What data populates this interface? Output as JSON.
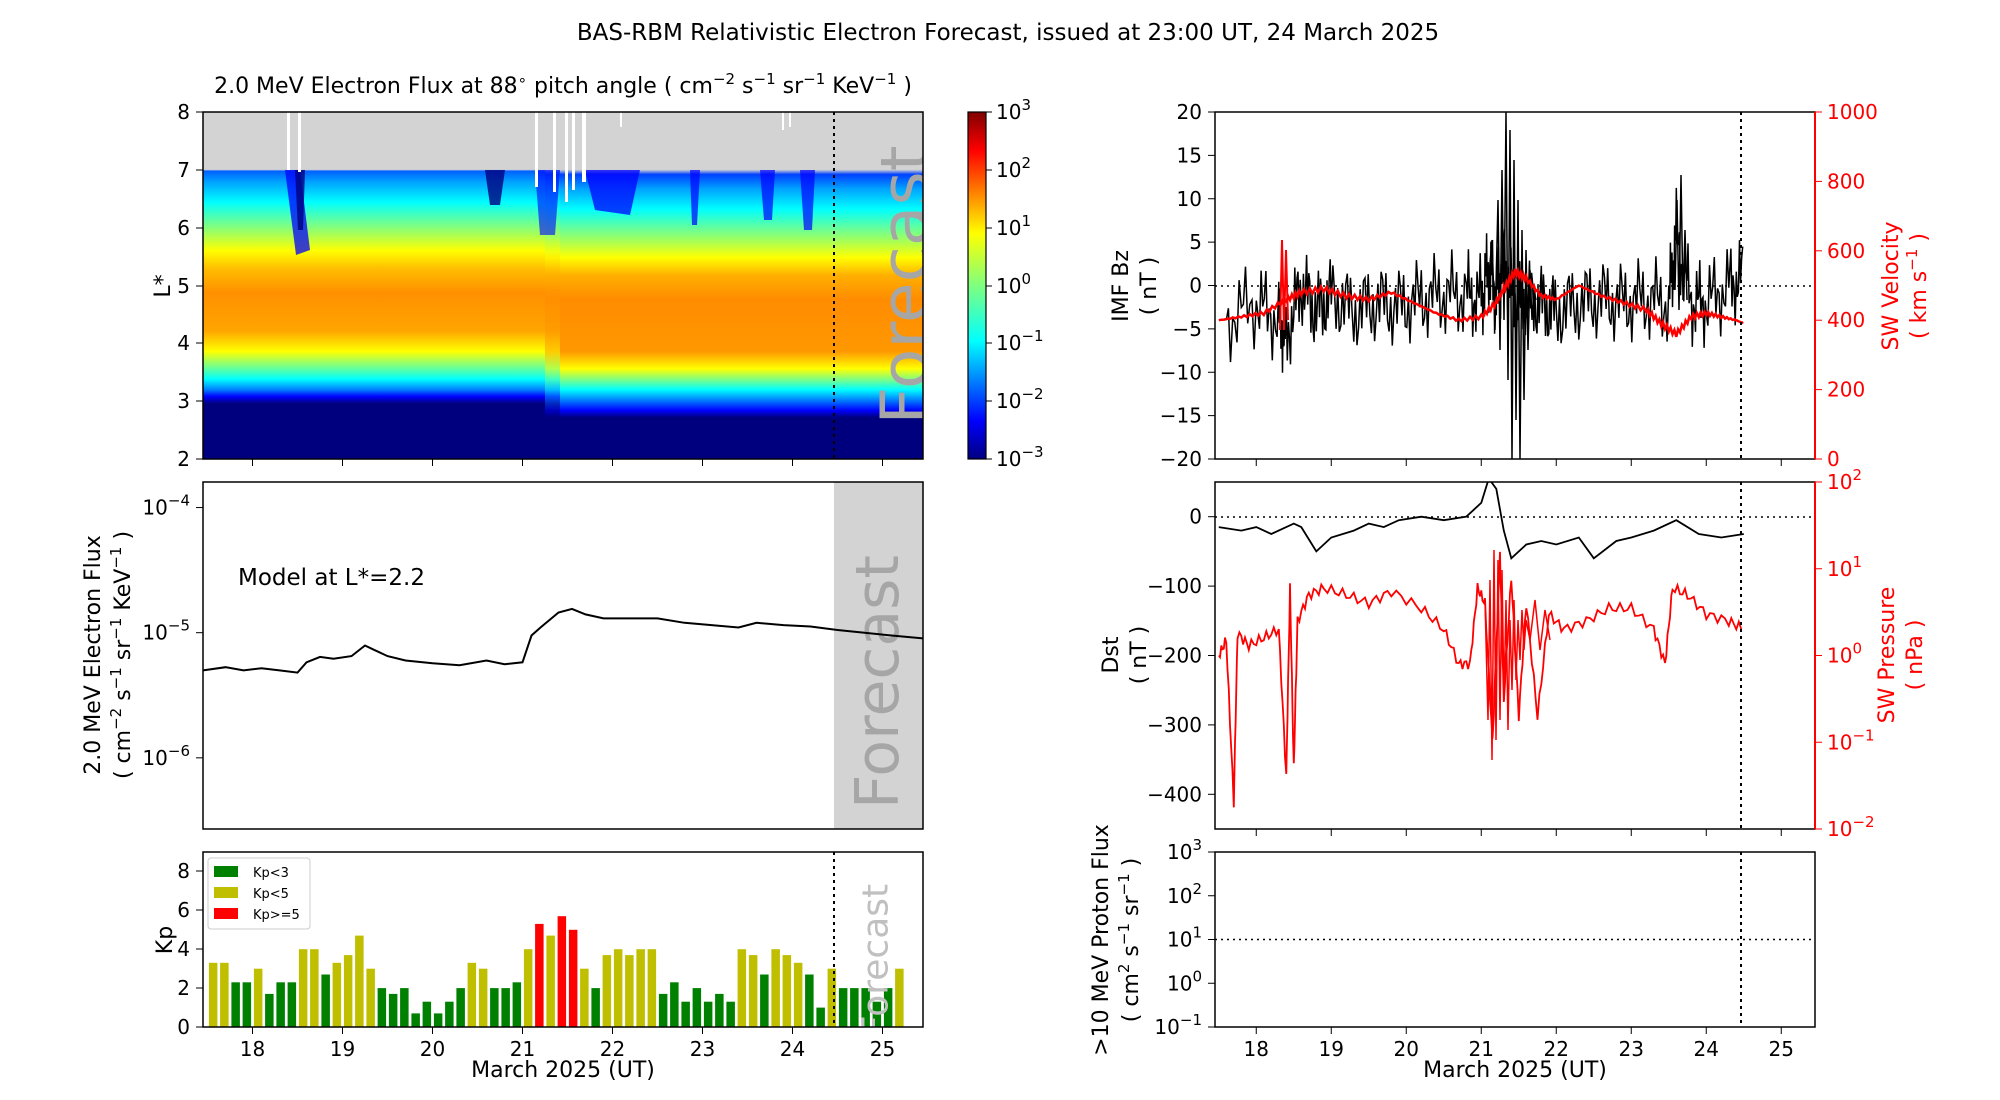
{
  "figure_title": "BAS-RBM Relativistic Electron Forecast, issued at 23:00 UT, 24 March 2025",
  "forecast_label": "Forecast",
  "x_axis": {
    "label": "March 2025 (UT)",
    "range": [
      17.45,
      25.45
    ],
    "ticks": [
      "18",
      "19",
      "20",
      "21",
      "22",
      "23",
      "24",
      "25"
    ],
    "forecast_start": 24.5
  },
  "colors": {
    "black": "#000000",
    "red": "#ff0000",
    "kp_green": "#008000",
    "kp_yellow": "#bfbf00",
    "kp_red": "#ff0000",
    "forecast_gray": "#d3d3d3"
  },
  "chart_data": [
    {
      "id": "flux_map",
      "type": "heatmap",
      "title_parts": [
        "2.0 MeV Electron Flux at 88",
        "∘",
        " pitch angle ( cm",
        "−2",
        " s",
        "−1",
        " sr",
        "−1",
        " KeV",
        "−1",
        " )"
      ],
      "ylabel": "L*",
      "ylim": [
        2,
        8
      ],
      "yticks": [
        "2",
        "3",
        "4",
        "5",
        "6",
        "7",
        "8"
      ],
      "colorbar": {
        "scale": "log",
        "range": [
          0.001,
          1000
        ],
        "tick_bases": [
          "10",
          "10",
          "10",
          "10",
          "10",
          "10",
          "10"
        ],
        "tick_exps": [
          "3",
          "2",
          "1",
          "0",
          "−1",
          "−2",
          "−3"
        ]
      },
      "peak_band_L": [
        3.6,
        5.2
      ],
      "low_band_L": [
        2.0,
        3.0
      ],
      "no_data_above_L": 7.0
    },
    {
      "id": "flux_line",
      "type": "line",
      "ylabel_line1": "2.0 MeV Electron Flux",
      "ylabel_line2_parts": [
        "( cm",
        "−2",
        " s",
        "−1",
        " sr",
        "−1",
        " KeV",
        "−1",
        " )"
      ],
      "yscale": "log",
      "ylim": [
        2.7e-07,
        0.00016
      ],
      "ytick_exps": [
        "−4",
        "−5",
        "−6"
      ],
      "annotation": "Model at L*=2.2",
      "x": [
        17.45,
        17.7,
        17.9,
        18.1,
        18.3,
        18.5,
        18.6,
        18.75,
        18.9,
        19.1,
        19.25,
        19.35,
        19.5,
        19.7,
        20.0,
        20.3,
        20.6,
        20.8,
        21.0,
        21.1,
        21.2,
        21.4,
        21.55,
        21.7,
        21.9,
        22.2,
        22.5,
        22.8,
        23.1,
        23.4,
        23.6,
        23.9,
        24.2,
        24.5,
        24.8,
        25.1,
        25.45
      ],
      "y": [
        5e-06,
        5.3e-06,
        5e-06,
        5.2e-06,
        5e-06,
        4.8e-06,
        5.8e-06,
        6.4e-06,
        6.2e-06,
        6.5e-06,
        7.9e-06,
        7.3e-06,
        6.5e-06,
        6e-06,
        5.7e-06,
        5.5e-06,
        6e-06,
        5.6e-06,
        5.8e-06,
        9.5e-06,
        1.1e-05,
        1.45e-05,
        1.55e-05,
        1.4e-05,
        1.3e-05,
        1.3e-05,
        1.3e-05,
        1.2e-05,
        1.15e-05,
        1.1e-05,
        1.2e-05,
        1.15e-05,
        1.12e-05,
        1.05e-05,
        1e-05,
        9.5e-06,
        9e-06
      ]
    },
    {
      "id": "kp",
      "type": "bar",
      "ylabel": "Kp",
      "ylim": [
        0,
        9
      ],
      "yticks": [
        "0",
        "2",
        "4",
        "6",
        "8"
      ],
      "legend": [
        "Kp<3",
        "Kp<5",
        "Kp>=5"
      ],
      "bar_width_days": 0.1,
      "values": [
        3.3,
        3.3,
        2.3,
        2.3,
        3.0,
        1.7,
        2.3,
        2.3,
        4.0,
        4.0,
        2.7,
        3.3,
        3.7,
        4.7,
        3.0,
        2.0,
        1.7,
        2.0,
        0.7,
        1.3,
        0.7,
        1.3,
        2.0,
        3.3,
        3.0,
        2.0,
        2.0,
        2.3,
        4.0,
        5.3,
        4.7,
        5.7,
        5.0,
        3.0,
        2.0,
        3.7,
        4.0,
        3.7,
        4.0,
        4.0,
        1.7,
        2.3,
        1.3,
        2.0,
        1.3,
        1.7,
        1.3,
        4.0,
        3.7,
        2.7,
        4.0,
        3.7,
        3.3,
        2.7,
        1.0,
        3.0,
        2.0,
        2.0,
        2.0,
        1.3,
        2.0,
        3.0
      ]
    },
    {
      "id": "imf_sw",
      "type": "line",
      "ylabel_line1": "IMF Bz",
      "ylabel_line2": "( nT )",
      "ylim": [
        -20,
        20
      ],
      "yticks": [
        "20",
        "15",
        "10",
        "5",
        "0",
        "−5",
        "−10",
        "−15",
        "−20"
      ],
      "ylabel_right_line1": "SW Velocity",
      "ylabel_right_line2_parts": [
        "( km s",
        "−1",
        " )"
      ],
      "ylim_right": [
        0,
        1000
      ],
      "yticks_right": [
        "1000",
        "800",
        "600",
        "400",
        "200",
        "0"
      ],
      "bz_x": [
        17.6,
        18.0,
        18.3,
        18.4,
        18.6,
        18.8,
        19.0,
        19.3,
        19.6,
        19.9,
        20.2,
        20.5,
        20.8,
        21.0,
        21.1,
        21.2,
        21.3,
        21.45,
        21.6,
        21.8,
        22.0,
        22.3,
        22.6,
        22.9,
        23.2,
        23.5,
        23.6,
        23.8,
        24.0,
        24.3,
        24.5
      ],
      "bz_y": [
        -4.0,
        -2.0,
        -4.0,
        -6.0,
        0.0,
        -3.0,
        -1.0,
        -3.0,
        -2.0,
        -2.5,
        -1.5,
        -1.0,
        -1.0,
        -1.5,
        2.0,
        -1.0,
        3.0,
        -2.0,
        -1.5,
        -2.0,
        -3.0,
        -2.0,
        -1.5,
        -2.0,
        -1.5,
        -2.0,
        6.0,
        -2.0,
        -2.0,
        0.0,
        1.0
      ],
      "v_x": [
        17.5,
        17.8,
        18.1,
        18.4,
        18.6,
        18.9,
        19.2,
        19.5,
        19.8,
        20.1,
        20.4,
        20.7,
        21.0,
        21.2,
        21.3,
        21.45,
        21.6,
        21.8,
        22.0,
        22.3,
        22.6,
        22.9,
        23.2,
        23.4,
        23.6,
        23.8,
        24.0,
        24.2,
        24.4,
        24.5
      ],
      "v_y": [
        400,
        410,
        420,
        460,
        480,
        490,
        470,
        460,
        480,
        450,
        420,
        400,
        410,
        450,
        490,
        540,
        520,
        470,
        460,
        500,
        470,
        450,
        430,
        390,
        360,
        410,
        420,
        410,
        400,
        390
      ]
    },
    {
      "id": "dst_pressure",
      "type": "line",
      "ylabel_line1": "Dst",
      "ylabel_line2": "( nT )",
      "ylim": [
        -450,
        50
      ],
      "yticks": [
        "0",
        "−100",
        "−200",
        "−300",
        "−400"
      ],
      "ylabel_right_line1": "SW Pressure",
      "ylabel_right_line2": "( nPa )",
      "yscale_right": "log",
      "ylim_right": [
        0.01,
        100
      ],
      "ytick_exps_right": [
        "2",
        "1",
        "0",
        "−1",
        "−2"
      ],
      "dst_x": [
        17.5,
        17.8,
        18.0,
        18.2,
        18.5,
        18.6,
        18.8,
        19.0,
        19.3,
        19.5,
        19.7,
        19.9,
        20.2,
        20.5,
        20.8,
        21.0,
        21.1,
        21.2,
        21.3,
        21.4,
        21.6,
        21.8,
        22.0,
        22.3,
        22.5,
        22.8,
        23.0,
        23.3,
        23.6,
        23.9,
        24.2,
        24.5
      ],
      "dst_y": [
        -15,
        -20,
        -15,
        -25,
        -10,
        -15,
        -50,
        -30,
        -20,
        -10,
        -15,
        -5,
        0,
        -5,
        0,
        20,
        55,
        40,
        -20,
        -60,
        -40,
        -35,
        -40,
        -30,
        -60,
        -35,
        -30,
        -20,
        -5,
        -25,
        -30,
        -25
      ],
      "p_x": [
        17.5,
        17.6,
        17.7,
        17.75,
        17.9,
        18.1,
        18.3,
        18.4,
        18.45,
        18.5,
        18.55,
        18.7,
        18.9,
        19.2,
        19.5,
        19.8,
        20.2,
        20.5,
        20.7,
        20.85,
        20.95,
        21.05,
        21.15,
        21.25,
        21.3,
        21.4,
        21.5,
        21.6,
        21.75,
        21.9,
        22.1,
        22.4,
        22.7,
        23.0,
        23.3,
        23.45,
        23.55,
        23.75,
        24.0,
        24.3,
        24.5
      ],
      "p_y": [
        1.0,
        1.5,
        0.02,
        1.8,
        1.3,
        1.6,
        2.0,
        0.04,
        6.0,
        0.05,
        2.5,
        5.0,
        6.0,
        5.0,
        4.0,
        5.5,
        3.5,
        2.0,
        0.8,
        0.8,
        6.0,
        4.0,
        0.1,
        15.0,
        0.3,
        8.0,
        0.2,
        4.0,
        0.2,
        3.0,
        2.0,
        2.5,
        3.5,
        3.5,
        2.0,
        0.8,
        6.0,
        5.0,
        3.0,
        2.5,
        2.0
      ]
    },
    {
      "id": "proton_flux",
      "type": "line",
      "ylabel_line1": ">10 MeV Proton Flux",
      "ylabel_line2_parts": [
        "( cm",
        "2",
        " s",
        "−1",
        " sr",
        "−1",
        " )"
      ],
      "yscale": "log",
      "ylim": [
        0.1,
        1000
      ],
      "ytick_exps": [
        "3",
        "2",
        "1",
        "0",
        "−1"
      ],
      "threshold": 10
    }
  ]
}
